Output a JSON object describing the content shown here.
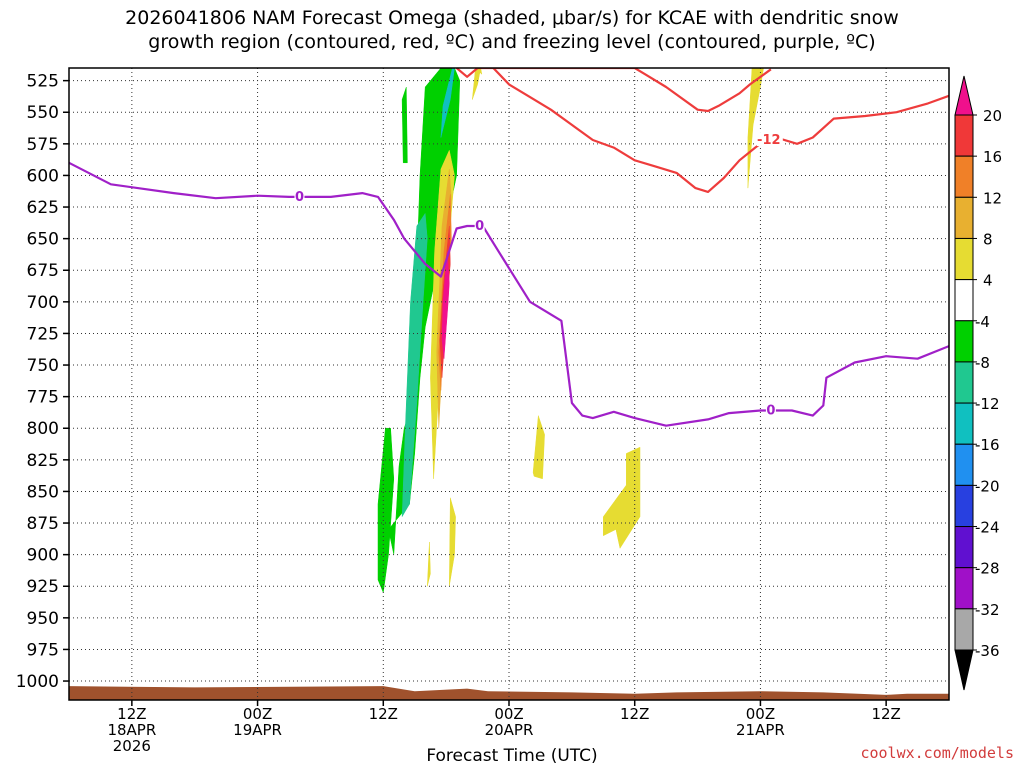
{
  "title_line1": "2026041806 NAM Forecast Omega (shaded, μbar/s) for KCAE with dendritic snow",
  "title_line2": "growth region (contoured, red, ºC) and freezing level (contoured, purple, ºC)",
  "xlabel": "Forecast Time (UTC)",
  "credit": "coolwx.com/models",
  "chart_data": {
    "type": "heatmap",
    "yaxis": {
      "ticks": [
        "525",
        "550",
        "575",
        "600",
        "625",
        "650",
        "675",
        "700",
        "725",
        "750",
        "775",
        "800",
        "825",
        "850",
        "875",
        "900",
        "925",
        "950",
        "975",
        "1000"
      ],
      "range_hPa": [
        515,
        1015
      ],
      "inverted": true
    },
    "xaxis": {
      "range_hours": [
        0,
        84
      ],
      "ticks": [
        {
          "hour": 6,
          "line1": "12Z",
          "line2": "18APR",
          "line3": "2026"
        },
        {
          "hour": 18,
          "line1": "00Z",
          "line2": "19APR",
          "line3": ""
        },
        {
          "hour": 30,
          "line1": "12Z",
          "line2": "",
          "line3": ""
        },
        {
          "hour": 42,
          "line1": "00Z",
          "line2": "20APR",
          "line3": ""
        },
        {
          "hour": 54,
          "line1": "12Z",
          "line2": "",
          "line3": ""
        },
        {
          "hour": 66,
          "line1": "00Z",
          "line2": "21APR",
          "line3": ""
        },
        {
          "hour": 78,
          "line1": "12Z",
          "line2": "",
          "line3": ""
        }
      ]
    },
    "colorbar": {
      "labels": [
        "20",
        "16",
        "12",
        "8",
        "4",
        "-4",
        "-8",
        "-12",
        "-16",
        "-20",
        "-24",
        "-28",
        "-32",
        "-36"
      ],
      "bins": [
        {
          "from": 16,
          "to": 20,
          "color": "#f03838"
        },
        {
          "from": 12,
          "to": 16,
          "color": "#f08028"
        },
        {
          "from": 8,
          "to": 12,
          "color": "#e8b030"
        },
        {
          "from": 4,
          "to": 8,
          "color": "#e6dc32"
        },
        {
          "from": -4,
          "to": 4,
          "color": "#ffffff"
        },
        {
          "from": -8,
          "to": -4,
          "color": "#00d000"
        },
        {
          "from": -12,
          "to": -8,
          "color": "#20c890"
        },
        {
          "from": -16,
          "to": -12,
          "color": "#10c0c0"
        },
        {
          "from": -20,
          "to": -16,
          "color": "#2090f0"
        },
        {
          "from": -24,
          "to": -20,
          "color": "#2840e0"
        },
        {
          "from": -28,
          "to": -24,
          "color": "#6010d0"
        },
        {
          "from": -32,
          "to": -28,
          "color": "#a010c8"
        },
        {
          "from": -36,
          "to": -32,
          "color": "#a8a8a8"
        }
      ],
      "over_color": "#f0108c",
      "under_color": "#000000"
    },
    "freezing_level_label": "0",
    "dgz_label": "-12",
    "freezing_level": {
      "color": "#a020c8",
      "hours": [
        0,
        4,
        10,
        14,
        18,
        21,
        25,
        28,
        29.5,
        31,
        32,
        34,
        35.5,
        37,
        38,
        39.5,
        41,
        44,
        47,
        48,
        49,
        50,
        52,
        54,
        57,
        61,
        63,
        66,
        69,
        71,
        72,
        72.3,
        75,
        78,
        81,
        84
      ],
      "hPa": [
        590,
        607,
        614,
        618,
        616,
        617,
        617,
        614,
        617,
        635,
        650,
        670,
        680,
        642,
        640,
        640,
        660,
        700,
        715,
        780,
        790,
        792,
        787,
        792,
        798,
        793,
        788,
        786,
        786,
        790,
        782,
        760,
        748,
        743,
        745,
        735
      ]
    },
    "dgz_contour": {
      "color": "#ee3c3c",
      "hours": [
        40.5,
        42,
        44,
        46,
        48,
        50,
        52,
        54,
        56,
        58,
        59.8,
        61,
        62.5,
        64,
        65.5,
        66.5,
        67.5,
        69.5,
        71,
        73,
        76,
        79,
        82,
        84
      ],
      "hPa": [
        515,
        528,
        538,
        548,
        560,
        572,
        578,
        588,
        593,
        598,
        610,
        613,
        602,
        588,
        578,
        572,
        570,
        575,
        570,
        555,
        553,
        550,
        543,
        537
      ]
    },
    "dgz_contour_top": {
      "color": "#ee3c3c",
      "hours": [
        37,
        38,
        39,
        54,
        55,
        57,
        60,
        61,
        62,
        64,
        65,
        67
      ],
      "hPa": [
        515,
        522,
        515,
        515,
        520,
        530,
        548,
        549,
        545,
        535,
        528,
        516
      ]
    },
    "omega_regions": [
      {
        "value_bin": -8,
        "color": "#00d000",
        "hours": [
          30.5,
          32.5,
          33,
          33.5,
          34,
          35,
          36,
          37,
          37.3,
          36.8,
          35.5,
          34,
          33.5,
          33,
          32.8,
          32,
          31.5,
          31
        ],
        "hPa": [
          880,
          860,
          820,
          760,
          720,
          680,
          640,
          600,
          525,
          515,
          515,
          530,
          600,
          720,
          780,
          800,
          830,
          900
        ]
      },
      {
        "value_bin": -8,
        "color": "#00d000",
        "hours": [
          29.5,
          30,
          30.5,
          31,
          30.7,
          30.2,
          29.5
        ],
        "hPa": [
          920,
          930,
          900,
          840,
          800,
          800,
          860
        ]
      },
      {
        "value_bin": -8,
        "color": "#00d000",
        "hours": [
          31.8,
          32.2,
          32.3,
          31.9
        ],
        "hPa": [
          540,
          530,
          590,
          590
        ]
      },
      {
        "value_bin": -12,
        "color": "#20c890",
        "hours": [
          31.8,
          32.5,
          33.2,
          33.8,
          34.2,
          34,
          33.2,
          32.6,
          32.1
        ],
        "hPa": [
          870,
          860,
          780,
          700,
          650,
          630,
          640,
          700,
          800
        ]
      },
      {
        "value_bin": -16,
        "color": "#10c0c0",
        "hours": [
          35.5,
          36.4,
          36.8,
          36.6,
          35.7
        ],
        "hPa": [
          570,
          540,
          515,
          515,
          545
        ]
      },
      {
        "value_bin": 4,
        "color": "#e6dc32",
        "hours": [
          34.8,
          35.5,
          36.4,
          36.8,
          36.3,
          35.5,
          34.9,
          34.5
        ],
        "hPa": [
          840,
          740,
          640,
          600,
          580,
          595,
          660,
          760
        ]
      },
      {
        "value_bin": 8,
        "color": "#e8b030",
        "hours": [
          35.3,
          35.9,
          36.5,
          36.3,
          35.6,
          35.1
        ],
        "hPa": [
          800,
          700,
          620,
          595,
          640,
          740
        ]
      },
      {
        "value_bin": 12,
        "color": "#f08028",
        "hours": [
          35.5,
          36,
          36.5,
          36.4,
          35.8,
          35.3
        ],
        "hPa": [
          770,
          680,
          650,
          615,
          660,
          740
        ]
      },
      {
        "value_bin": 16,
        "color": "#f03838",
        "hours": [
          35.6,
          36.2,
          36.4,
          36.3,
          35.7,
          35.4
        ],
        "hPa": [
          760,
          690,
          670,
          640,
          690,
          730
        ]
      },
      {
        "value_bin": 20,
        "color": "#f0108c",
        "hours": [
          35.8,
          36.2,
          36.3,
          36.1,
          35.7,
          35.6
        ],
        "hPa": [
          745,
          700,
          685,
          660,
          700,
          730
        ]
      },
      {
        "value_bin": 4,
        "color": "#e6dc32",
        "hours": [
          36.3,
          36.8,
          36.9,
          36.4
        ],
        "hPa": [
          925,
          900,
          870,
          855
        ]
      },
      {
        "value_bin": 4,
        "color": "#e6dc32",
        "hours": [
          34.2,
          34.5,
          34.4
        ],
        "hPa": [
          925,
          915,
          890
        ]
      },
      {
        "value_bin": 4,
        "color": "#e6dc32",
        "hours": [
          38.5,
          39,
          39.3,
          38.8
        ],
        "hPa": [
          540,
          528,
          515,
          515
        ]
      },
      {
        "value_bin": 4,
        "color": "#e6dc32",
        "hours": [
          38.8,
          39.4,
          39.3
        ],
        "hPa": [
          515,
          520,
          515
        ]
      },
      {
        "value_bin": 4,
        "color": "#e6dc32",
        "hours": [
          44.3,
          44.8,
          45.4,
          45.2,
          44.4
        ],
        "hPa": [
          835,
          790,
          805,
          840,
          838
        ]
      },
      {
        "value_bin": 4,
        "color": "#e6dc32",
        "hours": [
          51,
          53.2,
          53.2,
          54.5,
          54.5,
          52.6,
          52.2,
          51
        ],
        "hPa": [
          870,
          845,
          820,
          815,
          870,
          895,
          880,
          885
        ]
      },
      {
        "value_bin": 4,
        "color": "#e6dc32",
        "hours": [
          64.8,
          65.3,
          66,
          66.3,
          65.2,
          64.8
        ],
        "hPa": [
          610,
          560,
          530,
          515,
          515,
          570
        ]
      }
    ],
    "surface_terrain": {
      "color": "#a0522d",
      "hours": [
        0,
        12,
        30,
        33,
        38,
        40,
        48,
        54,
        58,
        66,
        72,
        78,
        80,
        84
      ],
      "hPa": [
        1004,
        1005,
        1004,
        1008,
        1006,
        1008,
        1009,
        1010,
        1009,
        1008,
        1009,
        1011,
        1010,
        1010
      ]
    }
  }
}
